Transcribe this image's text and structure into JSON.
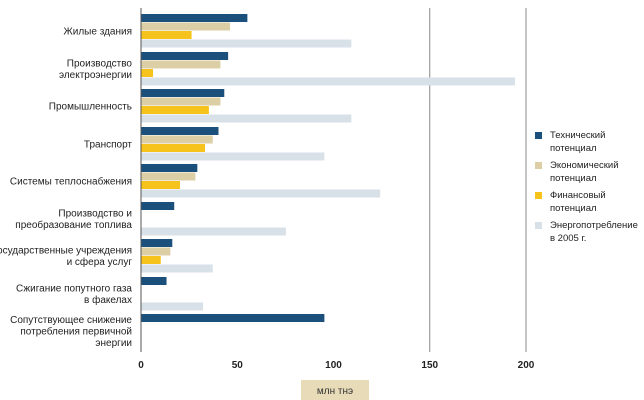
{
  "chart_data": {
    "type": "bar",
    "orientation": "horizontal",
    "categories": [
      [
        "Жилые здания"
      ],
      [
        "Производство",
        "электроэнергии"
      ],
      [
        "Промышленность"
      ],
      [
        "Транспорт"
      ],
      [
        "Системы теплоснабжения"
      ],
      [
        "Производство и",
        "преобразование топлива"
      ],
      [
        "Государственные учреждения",
        "и сфера услуг"
      ],
      [
        "Сжигание попутного газа",
        "в факелах"
      ],
      [
        "Сопутствующее снижение",
        "потребления первичной",
        "энергии"
      ]
    ],
    "series": [
      {
        "name": [
          "Технический",
          "потенциал"
        ],
        "color": "#1b4f7c",
        "values": [
          55,
          45,
          43,
          40,
          29,
          17,
          16,
          13,
          95
        ]
      },
      {
        "name": [
          "Экономический",
          "потенциал"
        ],
        "color": "#dccfa6",
        "values": [
          46,
          41,
          41,
          37,
          28,
          null,
          15,
          null,
          null
        ]
      },
      {
        "name": [
          "Финансовый",
          "потенциал"
        ],
        "color": "#f6c21c",
        "values": [
          26,
          6,
          35,
          33,
          20,
          null,
          10,
          null,
          null
        ]
      },
      {
        "name": [
          "Энергопотребление",
          "в 2005 г."
        ],
        "color": "#d8e1e8",
        "values": [
          109,
          194,
          109,
          95,
          124,
          75,
          37,
          32,
          null
        ]
      }
    ],
    "x_ticks": [
      "0",
      "50",
      "100",
      "150",
      "200"
    ],
    "xlim": [
      0,
      210
    ],
    "xlabel": "млн тнэ",
    "gridlines": [
      150,
      200
    ],
    "legend": "right"
  }
}
